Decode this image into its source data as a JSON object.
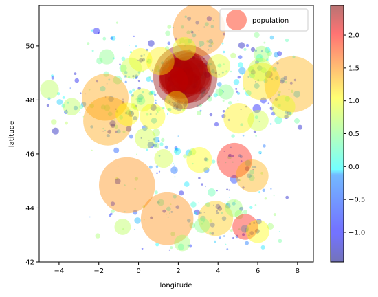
{
  "chart_data": {
    "type": "scatter",
    "xlabel": "longitude",
    "ylabel": "latitude",
    "xlim": [
      -5,
      8.8
    ],
    "ylim": [
      42,
      51.5
    ],
    "xticks": [
      -4,
      -2,
      0,
      2,
      4,
      6,
      8
    ],
    "yticks": [
      42,
      44,
      46,
      48,
      50
    ],
    "grid": false,
    "legend": {
      "entries": [
        "population"
      ],
      "placement": "top-right",
      "marker_color": "#ff4a2f"
    },
    "colorbar": {
      "colormap": "jet",
      "range": [
        -1.45,
        2.45
      ],
      "ticks": [
        -1.0,
        -0.5,
        0.0,
        0.5,
        1.0,
        1.5,
        2.0
      ],
      "tick_labels": [
        "−1.0",
        "−0.5",
        "0.0",
        "0.5",
        "1.0",
        "1.5",
        "2.0"
      ],
      "alpha": 0.55
    },
    "marker_alpha": 0.4,
    "points": [
      {
        "x": 2.35,
        "y": 48.86,
        "s": 5.5,
        "c": 2.4
      },
      {
        "x": 2.25,
        "y": 48.95,
        "s": 4.0,
        "c": 2.35
      },
      {
        "x": 2.5,
        "y": 48.75,
        "s": 4.0,
        "c": 2.35
      },
      {
        "x": 2.1,
        "y": 48.8,
        "s": 3.5,
        "c": 2.3
      },
      {
        "x": 2.6,
        "y": 49.0,
        "s": 3.5,
        "c": 2.3
      },
      {
        "x": 1.9,
        "y": 48.9,
        "s": 3.0,
        "c": 2.3
      },
      {
        "x": 2.8,
        "y": 48.85,
        "s": 3.0,
        "c": 2.25
      },
      {
        "x": 2.4,
        "y": 49.2,
        "s": 3.0,
        "c": 2.25
      },
      {
        "x": 2.3,
        "y": 48.5,
        "s": 3.0,
        "c": 2.25
      },
      {
        "x": 1.75,
        "y": 48.7,
        "s": 2.5,
        "c": 2.2
      },
      {
        "x": 3.05,
        "y": 50.6,
        "s": 4.5,
        "c": 1.45
      },
      {
        "x": 7.75,
        "y": 48.58,
        "s": 4.8,
        "c": 1.3
      },
      {
        "x": -1.68,
        "y": 48.1,
        "s": 4.0,
        "c": 1.35
      },
      {
        "x": -1.55,
        "y": 47.22,
        "s": 4.2,
        "c": 1.35
      },
      {
        "x": -0.58,
        "y": 44.84,
        "s": 4.8,
        "c": 1.45
      },
      {
        "x": 1.44,
        "y": 43.6,
        "s": 4.5,
        "c": 1.45
      },
      {
        "x": 3.88,
        "y": 43.61,
        "s": 3.0,
        "c": 1.2
      },
      {
        "x": 5.37,
        "y": 43.3,
        "s": 2.2,
        "c": 1.9
      },
      {
        "x": 4.83,
        "y": 45.76,
        "s": 3.0,
        "c": 1.9
      },
      {
        "x": 5.72,
        "y": 45.19,
        "s": 2.8,
        "c": 1.3
      },
      {
        "x": 6.18,
        "y": 48.69,
        "s": 3.2,
        "c": 1.1
      },
      {
        "x": 5.04,
        "y": 47.32,
        "s": 2.6,
        "c": 1.05
      },
      {
        "x": 1.1,
        "y": 49.44,
        "s": 2.4,
        "c": 1.05
      },
      {
        "x": 0.1,
        "y": 49.49,
        "s": 2.0,
        "c": 1.0
      },
      {
        "x": 3.06,
        "y": 45.78,
        "s": 2.2,
        "c": 1.0
      },
      {
        "x": 6.0,
        "y": 43.13,
        "s": 2.0,
        "c": 1.0
      },
      {
        "x": 0.7,
        "y": 47.39,
        "s": 2.2,
        "c": 1.0
      },
      {
        "x": 1.9,
        "y": 47.9,
        "s": 2.0,
        "c": 1.0
      },
      {
        "x": -0.57,
        "y": 47.47,
        "s": 2.0,
        "c": 1.0
      },
      {
        "x": 4.03,
        "y": 49.26,
        "s": 2.0,
        "c": 0.9
      },
      {
        "x": 2.3,
        "y": 49.9,
        "s": 2.0,
        "c": 0.9
      },
      {
        "x": 0.2,
        "y": 48.0,
        "s": 2.0,
        "c": 0.9
      },
      {
        "x": 6.12,
        "y": 49.12,
        "s": 2.0,
        "c": 0.8
      },
      {
        "x": 7.3,
        "y": 47.75,
        "s": 2.0,
        "c": 0.9
      },
      {
        "x": 6.02,
        "y": 47.24,
        "s": 1.8,
        "c": 0.8
      },
      {
        "x": -4.48,
        "y": 48.39,
        "s": 1.6,
        "c": 0.7
      },
      {
        "x": -0.37,
        "y": 49.18,
        "s": 1.8,
        "c": 0.8
      },
      {
        "x": -3.36,
        "y": 47.75,
        "s": 1.5,
        "c": 0.7
      },
      {
        "x": 0.34,
        "y": 46.58,
        "s": 1.8,
        "c": 0.8
      },
      {
        "x": 1.26,
        "y": 45.83,
        "s": 1.6,
        "c": 0.8
      },
      {
        "x": -0.8,
        "y": 43.3,
        "s": 1.4,
        "c": 0.7
      },
      {
        "x": 2.2,
        "y": 42.7,
        "s": 1.4,
        "c": 0.6
      },
      {
        "x": 3.2,
        "y": 43.35,
        "s": 1.3,
        "c": 0.5
      },
      {
        "x": 4.8,
        "y": 44.0,
        "s": 1.5,
        "c": 0.6
      },
      {
        "x": 6.2,
        "y": 49.7,
        "s": 1.4,
        "c": 0.6
      },
      {
        "x": 4.4,
        "y": 48.3,
        "s": 1.3,
        "c": 0.5
      },
      {
        "x": -1.6,
        "y": 49.6,
        "s": 1.3,
        "c": 0.5
      }
    ]
  }
}
